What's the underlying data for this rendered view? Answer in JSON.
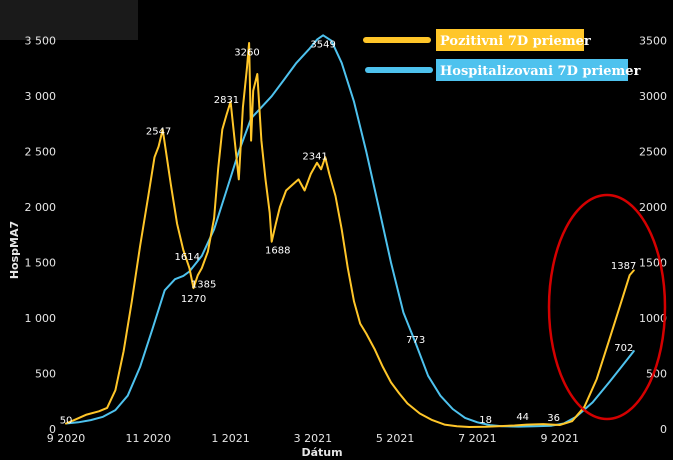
{
  "chart_data": {
    "type": "line",
    "title": "",
    "xlabel": "Dátum",
    "ylabel": "HospMA7",
    "x_ticks": [
      "9 2020",
      "11 2020",
      "1 2021",
      "3 2021",
      "5 2021",
      "7 2021",
      "9 2021"
    ],
    "y_left_ticks": [
      "0",
      "500",
      "1 000",
      "1 500",
      "2 000",
      "2 500",
      "3 000",
      "3 500"
    ],
    "y_right_ticks": [
      "0",
      "500",
      "1000",
      "1500",
      "2000",
      "2500",
      "3000",
      "3500"
    ],
    "ylim_left": [
      0,
      3750
    ],
    "ylim_right": [
      0,
      3750
    ],
    "x_range_months": [
      0,
      14
    ],
    "grid": false,
    "legend_position": "top-right",
    "series": [
      {
        "name": "Pozitivni 7D priemer",
        "color": "#ffc629",
        "axis": "left",
        "points": [
          [
            0,
            50
          ],
          [
            0.2,
            80
          ],
          [
            0.5,
            130
          ],
          [
            0.8,
            160
          ],
          [
            1.0,
            190
          ],
          [
            1.2,
            350
          ],
          [
            1.4,
            700
          ],
          [
            1.6,
            1150
          ],
          [
            1.8,
            1650
          ],
          [
            2.0,
            2100
          ],
          [
            2.15,
            2450
          ],
          [
            2.25,
            2547
          ],
          [
            2.35,
            2700
          ],
          [
            2.45,
            2450
          ],
          [
            2.55,
            2200
          ],
          [
            2.7,
            1850
          ],
          [
            2.85,
            1614
          ],
          [
            3.0,
            1450
          ],
          [
            3.1,
            1270
          ],
          [
            3.2,
            1385
          ],
          [
            3.3,
            1450
          ],
          [
            3.45,
            1600
          ],
          [
            3.6,
            1900
          ],
          [
            3.7,
            2350
          ],
          [
            3.8,
            2700
          ],
          [
            3.9,
            2831
          ],
          [
            4.0,
            2950
          ],
          [
            4.1,
            2600
          ],
          [
            4.2,
            2250
          ],
          [
            4.3,
            2900
          ],
          [
            4.4,
            3260
          ],
          [
            4.45,
            3480
          ],
          [
            4.5,
            2600
          ],
          [
            4.55,
            3050
          ],
          [
            4.65,
            3200
          ],
          [
            4.75,
            2600
          ],
          [
            4.85,
            2250
          ],
          [
            4.95,
            1950
          ],
          [
            5.0,
            1688
          ],
          [
            5.1,
            1850
          ],
          [
            5.2,
            2000
          ],
          [
            5.35,
            2150
          ],
          [
            5.5,
            2200
          ],
          [
            5.65,
            2250
          ],
          [
            5.8,
            2150
          ],
          [
            5.95,
            2300
          ],
          [
            6.1,
            2400
          ],
          [
            6.2,
            2341
          ],
          [
            6.3,
            2450
          ],
          [
            6.4,
            2300
          ],
          [
            6.55,
            2100
          ],
          [
            6.7,
            1800
          ],
          [
            6.85,
            1450
          ],
          [
            7.0,
            1150
          ],
          [
            7.15,
            950
          ],
          [
            7.3,
            860
          ],
          [
            7.5,
            720
          ],
          [
            7.7,
            560
          ],
          [
            7.9,
            420
          ],
          [
            8.1,
            320
          ],
          [
            8.3,
            230
          ],
          [
            8.6,
            140
          ],
          [
            8.9,
            80
          ],
          [
            9.2,
            40
          ],
          [
            9.5,
            25
          ],
          [
            9.8,
            18
          ],
          [
            10.2,
            20
          ],
          [
            10.5,
            25
          ],
          [
            10.9,
            32
          ],
          [
            11.2,
            40
          ],
          [
            11.6,
            44
          ],
          [
            12.0,
            36
          ],
          [
            12.3,
            70
          ],
          [
            12.6,
            200
          ],
          [
            12.9,
            450
          ],
          [
            13.2,
            800
          ],
          [
            13.5,
            1150
          ],
          [
            13.7,
            1387
          ],
          [
            13.8,
            1430
          ]
        ]
      },
      {
        "name": "Hospitalizovani 7D priemer",
        "color": "#4ec2ee",
        "axis": "right",
        "points": [
          [
            0,
            50
          ],
          [
            0.3,
            60
          ],
          [
            0.6,
            80
          ],
          [
            0.9,
            110
          ],
          [
            1.2,
            170
          ],
          [
            1.5,
            300
          ],
          [
            1.8,
            560
          ],
          [
            2.1,
            900
          ],
          [
            2.4,
            1250
          ],
          [
            2.65,
            1350
          ],
          [
            2.85,
            1380
          ],
          [
            3.0,
            1420
          ],
          [
            3.3,
            1560
          ],
          [
            3.6,
            1800
          ],
          [
            3.9,
            2150
          ],
          [
            4.2,
            2500
          ],
          [
            4.5,
            2800
          ],
          [
            4.75,
            2900
          ],
          [
            5.0,
            3000
          ],
          [
            5.3,
            3150
          ],
          [
            5.6,
            3300
          ],
          [
            5.9,
            3420
          ],
          [
            6.1,
            3510
          ],
          [
            6.25,
            3549
          ],
          [
            6.45,
            3500
          ],
          [
            6.7,
            3300
          ],
          [
            7.0,
            2950
          ],
          [
            7.3,
            2500
          ],
          [
            7.6,
            2000
          ],
          [
            7.9,
            1500
          ],
          [
            8.2,
            1050
          ],
          [
            8.5,
            773
          ],
          [
            8.8,
            480
          ],
          [
            9.1,
            300
          ],
          [
            9.4,
            180
          ],
          [
            9.7,
            100
          ],
          [
            10.0,
            60
          ],
          [
            10.3,
            35
          ],
          [
            10.6,
            25
          ],
          [
            11.0,
            22
          ],
          [
            11.4,
            24
          ],
          [
            11.8,
            30
          ],
          [
            12.1,
            50
          ],
          [
            12.4,
            110
          ],
          [
            12.8,
            240
          ],
          [
            13.2,
            420
          ],
          [
            13.5,
            560
          ],
          [
            13.8,
            702
          ]
        ]
      }
    ],
    "annotations": [
      {
        "text": "50",
        "x": 0.05,
        "y": 50,
        "axis": "left"
      },
      {
        "text": "2547",
        "x": 2.25,
        "y": 2547,
        "axis": "left"
      },
      {
        "text": "1614",
        "x": 2.85,
        "y": 1614,
        "axis": "left"
      },
      {
        "text": "1385",
        "x": 3.2,
        "y": 1385,
        "axis": "left"
      },
      {
        "text": "1270",
        "x": 3.1,
        "y": 1270,
        "axis": "left"
      },
      {
        "text": "2831",
        "x": 3.9,
        "y": 2831,
        "axis": "left"
      },
      {
        "text": "3260",
        "x": 4.4,
        "y": 3260,
        "axis": "left"
      },
      {
        "text": "1688",
        "x": 5.0,
        "y": 1688,
        "axis": "left"
      },
      {
        "text": "3549",
        "x": 6.25,
        "y": 3549,
        "axis": "right"
      },
      {
        "text": "2341",
        "x": 6.2,
        "y": 2341,
        "axis": "left"
      },
      {
        "text": "773",
        "x": 8.5,
        "y": 773,
        "axis": "right"
      },
      {
        "text": "18",
        "x": 10.2,
        "y": 18,
        "axis": "left"
      },
      {
        "text": "44",
        "x": 11.1,
        "y": 44,
        "axis": "left"
      },
      {
        "text": "36",
        "x": 11.9,
        "y": 36,
        "axis": "left"
      },
      {
        "text": "1387",
        "x": 13.7,
        "y": 1387,
        "axis": "left"
      },
      {
        "text": "702",
        "x": 13.8,
        "y": 702,
        "axis": "right"
      }
    ],
    "highlight": {
      "shape": "ellipse",
      "color": "#d40000"
    }
  }
}
